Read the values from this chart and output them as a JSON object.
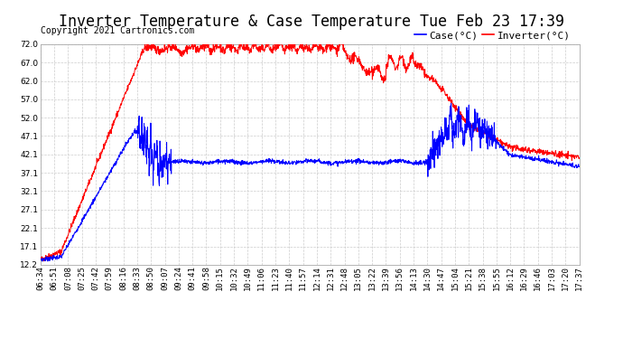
{
  "title": "Inverter Temperature & Case Temperature Tue Feb 23 17:39",
  "copyright": "Copyright 2021 Cartronics.com",
  "legend_case": "Case(°C)",
  "legend_inverter": "Inverter(°C)",
  "background_color": "#ffffff",
  "plot_bg_color": "#ffffff",
  "grid_color": "#cccccc",
  "case_color": "blue",
  "inverter_color": "red",
  "ylim": [
    12.2,
    72.0
  ],
  "yticks": [
    12.2,
    17.1,
    22.1,
    27.1,
    32.1,
    37.1,
    42.1,
    47.1,
    52.0,
    57.0,
    62.0,
    67.0,
    72.0
  ],
  "xtick_labels": [
    "06:34",
    "06:51",
    "07:08",
    "07:25",
    "07:42",
    "07:59",
    "08:16",
    "08:33",
    "08:50",
    "09:07",
    "09:24",
    "09:41",
    "09:58",
    "10:15",
    "10:32",
    "10:49",
    "11:06",
    "11:23",
    "11:40",
    "11:57",
    "12:14",
    "12:31",
    "12:48",
    "13:05",
    "13:22",
    "13:39",
    "13:56",
    "14:13",
    "14:30",
    "14:47",
    "15:04",
    "15:21",
    "15:38",
    "15:55",
    "16:12",
    "16:29",
    "16:46",
    "17:03",
    "17:20",
    "17:37"
  ],
  "title_fontsize": 12,
  "copyright_fontsize": 7,
  "tick_fontsize": 6.5,
  "legend_fontsize": 8
}
